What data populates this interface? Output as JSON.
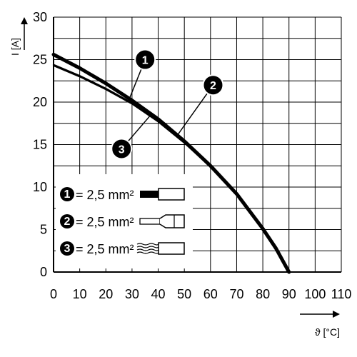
{
  "chart_data": {
    "type": "line",
    "xlabel": "ϑ [°C]",
    "ylabel": "I [A]",
    "xlim": [
      0,
      110
    ],
    "ylim": [
      0,
      30
    ],
    "x_ticks": [
      "0",
      "10",
      "20",
      "30",
      "40",
      "50",
      "60",
      "70",
      "80",
      "90",
      "100",
      "110"
    ],
    "y_ticks": [
      "0",
      "5",
      "10",
      "15",
      "20",
      "25",
      "30"
    ],
    "grid": true,
    "series": [
      {
        "name": "1",
        "color": "#000000",
        "x": [
          0,
          10,
          20,
          30,
          40,
          50,
          60,
          70,
          80,
          85,
          90
        ],
        "y": [
          25.6,
          24.0,
          22.2,
          20.2,
          18.0,
          15.4,
          12.5,
          9.2,
          5.1,
          2.8,
          0
        ]
      },
      {
        "name": "2",
        "color": "#000000",
        "x": [
          0,
          10,
          20,
          30,
          40,
          50,
          60,
          70,
          80,
          85,
          90
        ],
        "y": [
          24.3,
          23.0,
          21.5,
          19.8,
          17.7,
          15.2,
          12.4,
          9.2,
          5.1,
          2.8,
          0
        ]
      },
      {
        "name": "3",
        "color": "#000000",
        "x": [
          0,
          10,
          20,
          30,
          40,
          50,
          60,
          70,
          80,
          85,
          90
        ],
        "y": [
          24.4,
          23.1,
          21.6,
          19.9,
          17.8,
          15.3,
          12.45,
          9.2,
          5.1,
          2.8,
          0
        ]
      }
    ],
    "annotations": [
      {
        "label": "1",
        "x": 35,
        "y": 25.0
      },
      {
        "label": "2",
        "x": 61,
        "y": 22.0
      },
      {
        "label": "3",
        "x": 26,
        "y": 14.5
      }
    ],
    "legend": {
      "placement": "lower-left",
      "items": [
        {
          "badge": "1",
          "text": "= 2,5 mm²",
          "icon": "conductor-solid-icon"
        },
        {
          "badge": "2",
          "text": "= 2,5 mm²",
          "icon": "conductor-ferrule-icon"
        },
        {
          "badge": "3",
          "text": "= 2,5 mm²",
          "icon": "conductor-stranded-icon"
        }
      ]
    }
  }
}
